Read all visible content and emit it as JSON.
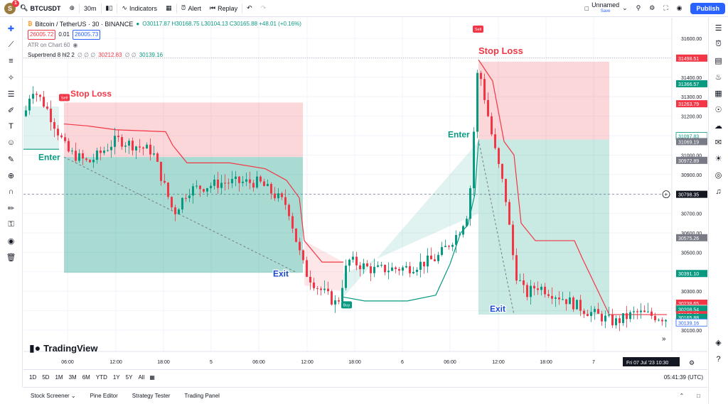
{
  "topbar": {
    "avatar_letter": "S",
    "avatar_badge": "1",
    "symbol": "BTCUSDT",
    "interval": "30m",
    "indicators": "Indicators",
    "alert": "Alert",
    "replay": "Replay",
    "layout_name": "Unnamed",
    "layout_status": "Save",
    "publish": "Publish"
  },
  "legend": {
    "title": "Bitcoin / TetherUS · 30 · BINANCE",
    "ohlc": "O30117.87 H30168.75 L30104.13 C30165.88 +48.01 (+0.16%)",
    "bid": "26005.72",
    "spread": "0.01",
    "ask": "26005.73",
    "atr": "ATR on Chart 60",
    "supertrend_label": "Supertrend 8 hl2 2",
    "supertrend_zeros": "∅ ∅ ∅",
    "supertrend_v1": "30212.83",
    "supertrend_zeros2": "∅ ∅",
    "supertrend_v2": "30139.16"
  },
  "chart_data": {
    "type": "candlestick",
    "symbol": "BTCUSDT",
    "interval": "30m",
    "price_axis": [
      "31600.00",
      "31500.00",
      "31400.00",
      "31300.00",
      "31200.00",
      "31100.00",
      "31000.00",
      "30900.00",
      "30800.00",
      "30700.00",
      "30600.00",
      "30500.00",
      "30400.00",
      "30300.00",
      "30200.00",
      "30100.00"
    ],
    "time_axis": [
      "06:00",
      "12:00",
      "18:00",
      "5",
      "06:00",
      "12:00",
      "18:00",
      "6",
      "06:00",
      "12:00",
      "18:00",
      "7"
    ],
    "price_labels": [
      {
        "value": "31498.51",
        "color": "#f23645"
      },
      {
        "value": "31366.57",
        "color": "#089981"
      },
      {
        "value": "31263.79",
        "color": "#f23645"
      },
      {
        "value": "31097.83",
        "color": "#089981",
        "outline": true
      },
      {
        "value": "31069.19",
        "color": "#787b86"
      },
      {
        "value": "30972.89",
        "color": "#787b86"
      },
      {
        "value": "30798.35",
        "color": "#131722"
      },
      {
        "value": "30575.26",
        "color": "#787b86"
      },
      {
        "value": "30391.10",
        "color": "#089981"
      },
      {
        "value": "30238.65",
        "color": "#f23645"
      },
      {
        "value": "30212.83",
        "color": "#f23645",
        "outline": true
      },
      {
        "value": "30208.54",
        "color": "#089981"
      },
      {
        "value": "30179.60",
        "color": "#f23645"
      },
      {
        "value": "30165.88",
        "color": "#089981"
      },
      {
        "value": "30139.16",
        "color": "#2962ff",
        "outline": true
      }
    ],
    "annotations": [
      "Stop Loss",
      "Enter",
      "Exit",
      "Stop Loss",
      "Enter",
      "Exit"
    ],
    "signals": [
      "Sell",
      "Buy",
      "Sell"
    ],
    "crosshair_date": "Fri 07 Jul '23",
    "crosshair_time": "10:30"
  },
  "bottombar": {
    "ranges": [
      "1D",
      "5D",
      "1M",
      "3M",
      "6M",
      "YTD",
      "1Y",
      "5Y",
      "All"
    ],
    "clock": "05:41:39 (UTC)"
  },
  "panels": [
    "Stock Screener",
    "Pine Editor",
    "Strategy Tester",
    "Trading Panel"
  ],
  "brand": "TradingView"
}
